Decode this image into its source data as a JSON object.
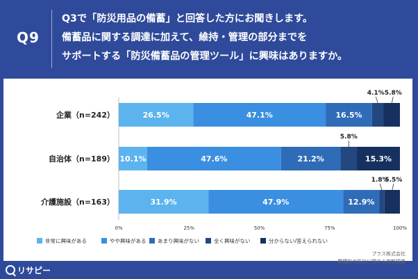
{
  "header": {
    "qnum": "Q9",
    "lines": [
      "Q3で「防災用品の備蓄」と回答した方にお聞きします。",
      "備蓄品に関する調達に加えて、維持・管理の部分までを",
      "サポートする「防災備蓄品の管理ツール」に興味はありますか。"
    ]
  },
  "footer": {
    "logo": "リサピー",
    "source_line1": "プラス株式会社",
    "source_line2": "業種別の防災に関する実態調査"
  },
  "colors": [
    "#5cb3ee",
    "#3b8fe0",
    "#2f6cb8",
    "#23477f",
    "#16305f"
  ],
  "chart_data": {
    "type": "bar",
    "orientation": "horizontal",
    "stacked": true,
    "categories": [
      "企業（n=242）",
      "自治体（n=189）",
      "介護施設（n=163）"
    ],
    "series": [
      {
        "name": "非常に興味がある",
        "values": [
          26.5,
          10.1,
          31.9
        ]
      },
      {
        "name": "やや興味がある",
        "values": [
          47.1,
          47.6,
          47.9
        ]
      },
      {
        "name": "あまり興味がない",
        "values": [
          16.5,
          21.2,
          12.9
        ]
      },
      {
        "name": "全く興味がない",
        "values": [
          4.1,
          5.8,
          1.8
        ]
      },
      {
        "name": "分からない/答えられない",
        "values": [
          5.8,
          15.3,
          5.5
        ]
      }
    ],
    "labels": [
      [
        "26.5%",
        "47.1%",
        "16.5%",
        "4.1%",
        "5.8%"
      ],
      [
        "10.1%",
        "47.6%",
        "21.2%",
        "5.8%",
        "15.3%"
      ],
      [
        "31.9%",
        "47.9%",
        "12.9%",
        "1.8%",
        "5.5%"
      ]
    ],
    "xticks": [
      "0%",
      "25%",
      "50%",
      "75%",
      "100%"
    ],
    "xlim": [
      0,
      100
    ],
    "legend_position": "bottom"
  }
}
